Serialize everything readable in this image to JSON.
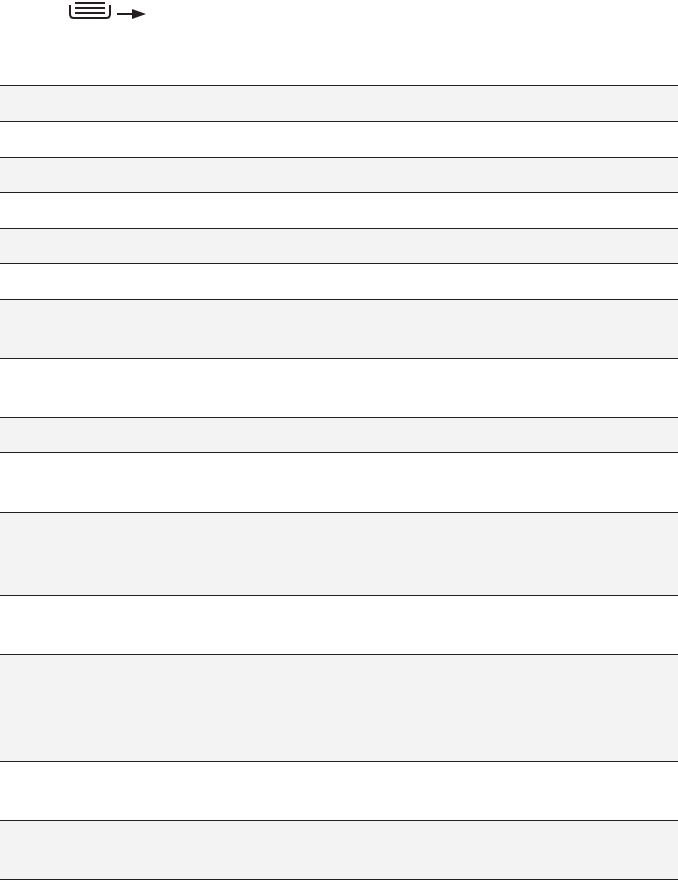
{
  "header": {
    "icons": [
      "menu-tray-icon",
      "arrow-right-icon"
    ]
  },
  "colors": {
    "rule": "#231f20",
    "shaded_row": "#f3f3f3",
    "plain_row": "#ffffff"
  },
  "table": {
    "rows": [
      {
        "shaded": true
      },
      {
        "shaded": false
      },
      {
        "shaded": true
      },
      {
        "shaded": false
      },
      {
        "shaded": true
      },
      {
        "shaded": false
      },
      {
        "shaded": true
      },
      {
        "shaded": false
      },
      {
        "shaded": true
      },
      {
        "shaded": false
      },
      {
        "shaded": true
      },
      {
        "shaded": false
      },
      {
        "shaded": true
      },
      {
        "shaded": false
      },
      {
        "shaded": true
      }
    ]
  }
}
